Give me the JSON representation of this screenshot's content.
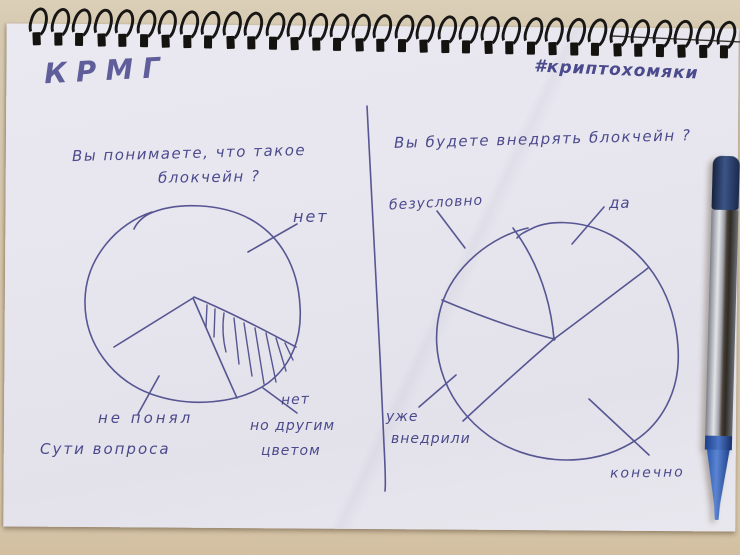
{
  "photo": {
    "brand": "КРМГ",
    "hashtag": "#криптохомяки",
    "ink_color": "#3d3d85",
    "paper_color": "#e7e5ed",
    "desk_color": "#d3c4a9",
    "binding_color": "#181715",
    "pen_color": "#2250a8"
  },
  "left_chart": {
    "title_line1": "Вы понимаете, что такое",
    "title_line2": "блокчейн ?",
    "label_no": "нет",
    "label_misunderstood_line1": "не понял",
    "label_misunderstood_line2": "Сути вопроса",
    "label_other_color_line1": "нет",
    "label_other_color_line2": "но другим",
    "label_other_color_line3": "цветом"
  },
  "right_chart": {
    "title": "Вы будете внедрять блокчейн ?",
    "label_certainly": "безусловно",
    "label_yes": "да",
    "label_already_line1": "уже",
    "label_already_line2": "внедрили",
    "label_of_course": "конечно"
  },
  "chart_data": [
    {
      "type": "pie",
      "title": "Вы понимаете, что такое блокчейн?",
      "style": "hand-drawn ink sketch",
      "legend_position": "callout-labels",
      "slices": [
        {
          "label": "нет",
          "percent": 66,
          "fill": "none"
        },
        {
          "label": "не понял сути вопроса",
          "percent": 23,
          "fill": "none"
        },
        {
          "label": "нет, но другим цветом",
          "percent": 11,
          "fill": "diagonal-hatch"
        }
      ]
    },
    {
      "type": "pie",
      "title": "Вы будете внедрять блокчейн?",
      "style": "hand-drawn ink sketch",
      "legend_position": "callout-labels",
      "slices": [
        {
          "label": "безусловно",
          "percent": 14,
          "fill": "none"
        },
        {
          "label": "да",
          "percent": 20,
          "fill": "none"
        },
        {
          "label": "конечно",
          "percent": 49,
          "fill": "none"
        },
        {
          "label": "уже внедрили",
          "percent": 17,
          "fill": "none"
        }
      ]
    }
  ]
}
